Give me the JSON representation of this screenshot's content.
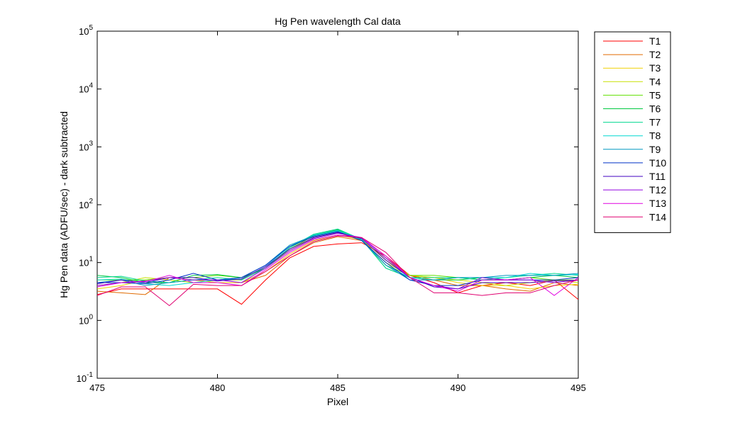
{
  "chart_data": {
    "type": "line",
    "title": "Hg Pen wavelength Cal data",
    "xlabel": "Pixel",
    "ylabel": "Hg Pen data (ADFU/sec) - dark subtracted",
    "x": [
      475,
      476,
      477,
      478,
      479,
      480,
      481,
      482,
      483,
      484,
      485,
      486,
      487,
      488,
      489,
      490,
      491,
      492,
      493,
      494,
      495
    ],
    "xlim": [
      475,
      495
    ],
    "xticks": [
      475,
      480,
      485,
      490,
      495
    ],
    "ylim": [
      0.1,
      100000
    ],
    "yscale": "log",
    "yticks": [
      {
        "value": 0.1,
        "label": "10^-1"
      },
      {
        "value": 1,
        "label": "10^0"
      },
      {
        "value": 10,
        "label": "10^1"
      },
      {
        "value": 100,
        "label": "10^2"
      },
      {
        "value": 1000,
        "label": "10^3"
      },
      {
        "value": 10000,
        "label": "10^4"
      },
      {
        "value": 100000,
        "label": "10^5"
      }
    ],
    "grid": false,
    "legend": "northeastoutside",
    "series": [
      {
        "name": "T1",
        "color": "#ff0000",
        "values": [
          2.8,
          3.5,
          3.5,
          3.5,
          3.5,
          3.5,
          1.9,
          5,
          12,
          19,
          21,
          22,
          13,
          6,
          4.5,
          3,
          4,
          4.5,
          4,
          5,
          2.3
        ]
      },
      {
        "name": "T2",
        "color": "#e06a00",
        "values": [
          3.2,
          3,
          2.8,
          5.5,
          5,
          4.5,
          4.5,
          6,
          13,
          22,
          28,
          24,
          12,
          6,
          5,
          4,
          4,
          3.5,
          3.2,
          4.5,
          4
        ]
      },
      {
        "name": "T3",
        "color": "#f0d000",
        "values": [
          3.5,
          4,
          5,
          5.5,
          5,
          4.5,
          4.5,
          7,
          14,
          24,
          30,
          25,
          11,
          6,
          5.5,
          4.5,
          4,
          4,
          3.5,
          4,
          4.2
        ]
      },
      {
        "name": "T4",
        "color": "#c8e000",
        "values": [
          4,
          4.5,
          5.5,
          5,
          4.5,
          5,
          5,
          8,
          16,
          27,
          33,
          24,
          10,
          6,
          5.5,
          5,
          4.5,
          4,
          4.5,
          5,
          4.5
        ]
      },
      {
        "name": "T5",
        "color": "#60e000",
        "values": [
          5,
          5,
          5,
          5.5,
          5.5,
          6,
          5.5,
          8,
          17,
          29,
          36,
          24,
          9,
          6,
          6,
          5.5,
          5,
          5,
          5.5,
          5,
          5
        ]
      },
      {
        "name": "T6",
        "color": "#00c840",
        "values": [
          6,
          5.5,
          4.5,
          4.5,
          6,
          6.2,
          5.5,
          8,
          18,
          30,
          37,
          25,
          8,
          5.5,
          5,
          5,
          5.5,
          5,
          5.5,
          6,
          5.5
        ]
      },
      {
        "name": "T7",
        "color": "#00d890",
        "values": [
          5.5,
          5.8,
          4.8,
          4.5,
          5,
          5.5,
          5,
          8,
          18,
          31,
          38,
          25,
          8,
          5.5,
          5.5,
          5.5,
          5,
          5.5,
          6,
          6.5,
          6
        ]
      },
      {
        "name": "T8",
        "color": "#00d8d0",
        "values": [
          5,
          5.2,
          4.3,
          4,
          4.5,
          5,
          5.2,
          8.5,
          19,
          30,
          36,
          25,
          9,
          5.5,
          5,
          5.5,
          5.5,
          5.5,
          6.5,
          6,
          6.2
        ]
      },
      {
        "name": "T9",
        "color": "#0098c0",
        "values": [
          4.5,
          5,
          4,
          4.5,
          5,
          5,
          5.5,
          9,
          20,
          29,
          35,
          24,
          9,
          5,
          5,
          5.5,
          5.5,
          6,
          6,
          6,
          6.5
        ]
      },
      {
        "name": "T10",
        "color": "#0030c8",
        "values": [
          4.5,
          4.5,
          4.3,
          5,
          6.5,
          5,
          5.5,
          9,
          19,
          28,
          34,
          24,
          10,
          5,
          4,
          4,
          5,
          5,
          5,
          5,
          5.5
        ]
      },
      {
        "name": "T11",
        "color": "#4000c0",
        "values": [
          4.3,
          5,
          4.5,
          5.5,
          5.5,
          4.8,
          5.2,
          8.5,
          17,
          27,
          33,
          26,
          11,
          5.5,
          3.8,
          3.5,
          4.5,
          4.5,
          4.5,
          4.8,
          5
        ]
      },
      {
        "name": "T12",
        "color": "#9000e0",
        "values": [
          4,
          4.5,
          4.8,
          5.5,
          5,
          5,
          4.5,
          8,
          16,
          26,
          32,
          27,
          12,
          5.5,
          4,
          3.5,
          5.5,
          5,
          5,
          4.5,
          5
        ]
      },
      {
        "name": "T13",
        "color": "#e000e0",
        "values": [
          3.8,
          4.5,
          4.7,
          6,
          4.5,
          4.5,
          4,
          7.5,
          15,
          25,
          30,
          27,
          13,
          5.5,
          4,
          3.2,
          5,
          5,
          5.5,
          2.7,
          5.5
        ]
      },
      {
        "name": "T14",
        "color": "#e00070",
        "values": [
          2.7,
          3.8,
          3.8,
          1.8,
          4.2,
          4,
          4,
          7,
          13,
          23,
          29,
          27,
          15,
          5.5,
          3,
          3,
          2.7,
          3,
          3,
          4,
          5
        ]
      }
    ]
  }
}
